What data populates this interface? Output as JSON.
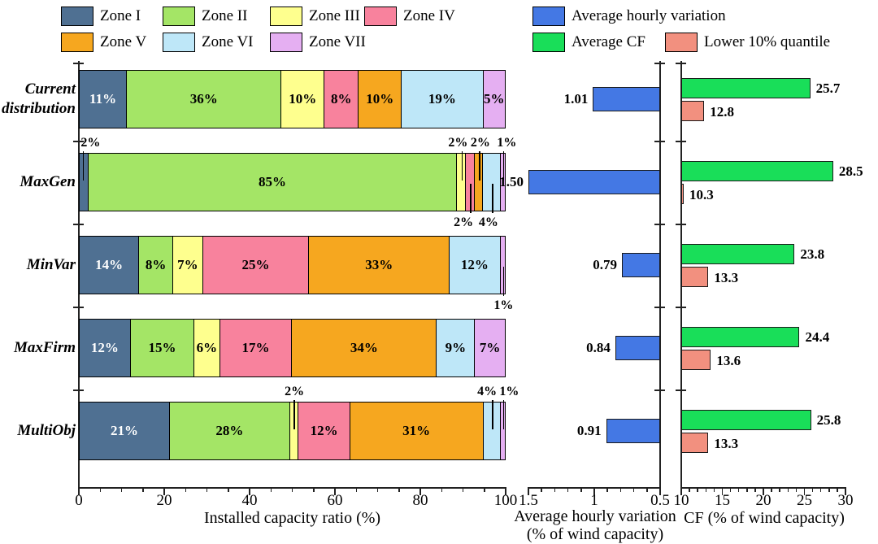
{
  "legend": {
    "zones": [
      {
        "label": "Zone I",
        "color": "#4F7092"
      },
      {
        "label": "Zone II",
        "color": "#A4E566"
      },
      {
        "label": "Zone III",
        "color": "#FEFF8E"
      },
      {
        "label": "Zone IV",
        "color": "#F8829D"
      },
      {
        "label": "Zone V",
        "color": "#F6A71F"
      },
      {
        "label": "Zone VI",
        "color": "#BEE7F8"
      },
      {
        "label": "Zone VII",
        "color": "#E5AFF2"
      }
    ],
    "metrics": [
      {
        "label": "Average hourly variation",
        "color": "#4478E4"
      },
      {
        "label": "Average CF",
        "color": "#19DE59"
      },
      {
        "label": "Lower 10% quantile",
        "color": "#F2907F"
      }
    ]
  },
  "chart_data": {
    "type": "bar",
    "orientation": "horizontal",
    "panels": [
      {
        "id": "installed-capacity",
        "type": "stacked-bar",
        "xlabel": "Installed capacity ratio (%)",
        "xlim": [
          0,
          100
        ],
        "ticks": [
          0,
          20,
          40,
          60,
          80,
          100
        ],
        "minor_step": 5
      },
      {
        "id": "hourly-variation",
        "type": "bar",
        "xlabel": "Average hourly variation (% of wind capacity)",
        "xlabel_lines": [
          "Average hourly variation",
          "(% of wind capacity)"
        ],
        "xlim": [
          1.5,
          0.5
        ],
        "reversed": true,
        "tick_labels": [
          "1.5",
          "1",
          "0.5"
        ],
        "tick_values": [
          1.5,
          1,
          0.5
        ],
        "minor_step": 0.1
      },
      {
        "id": "capacity-factor",
        "type": "grouped-bar",
        "xlabel": "CF (% of wind capacity)",
        "xlim": [
          10,
          30
        ],
        "ticks": [
          10,
          15,
          20,
          25,
          30
        ],
        "minor_step": 1
      }
    ],
    "zone_series": [
      "Zone I",
      "Zone II",
      "Zone III",
      "Zone IV",
      "Zone V",
      "Zone VI",
      "Zone VII"
    ],
    "scenarios": [
      {
        "name": "Current distribution",
        "zone_pct": [
          11,
          36,
          10,
          8,
          10,
          19,
          5
        ],
        "hourly_variation": "1.01",
        "average_cf": "25.7",
        "lower_10_quantile": "12.8",
        "callouts": []
      },
      {
        "name": "MaxGen",
        "zone_pct": [
          2,
          85,
          2,
          2,
          2,
          4,
          1
        ],
        "hourly_variation": "1.50",
        "average_cf": "28.5",
        "lower_10_quantile": "10.3",
        "callouts": [
          {
            "zone": 0,
            "side": "top",
            "dx": 9
          },
          {
            "zone": 2,
            "side": "top",
            "dx": -5
          },
          {
            "zone": 4,
            "side": "top",
            "dx": 1
          },
          {
            "zone": 6,
            "side": "top",
            "dx": 4
          },
          {
            "zone": 3,
            "side": "bottom",
            "dx": -9
          },
          {
            "zone": 5,
            "side": "bottom",
            "dx": -5
          }
        ]
      },
      {
        "name": "MinVar",
        "zone_pct": [
          14,
          8,
          7,
          25,
          33,
          12,
          1
        ],
        "hourly_variation": "0.79",
        "average_cf": "23.8",
        "lower_10_quantile": "13.3",
        "callouts": [
          {
            "zone": 6,
            "side": "bottom",
            "dx": 0
          }
        ]
      },
      {
        "name": "MaxFirm",
        "zone_pct": [
          12,
          15,
          6,
          17,
          34,
          9,
          7
        ],
        "hourly_variation": "0.84",
        "average_cf": "24.4",
        "lower_10_quantile": "13.6",
        "callouts": []
      },
      {
        "name": "MultiObj",
        "zone_pct": [
          21,
          28,
          2,
          12,
          31,
          4,
          1
        ],
        "hourly_variation": "0.91",
        "average_cf": "25.8",
        "lower_10_quantile": "13.3",
        "callouts": [
          {
            "zone": 2,
            "side": "top",
            "dx": 0
          },
          {
            "zone": 5,
            "side": "top",
            "dx": -7
          },
          {
            "zone": 6,
            "side": "top",
            "dx": 7
          }
        ]
      }
    ],
    "inside_label_min_pct": 5,
    "bar_text_color_zone1": "#ffffff",
    "bar_text_color": "#000000"
  }
}
